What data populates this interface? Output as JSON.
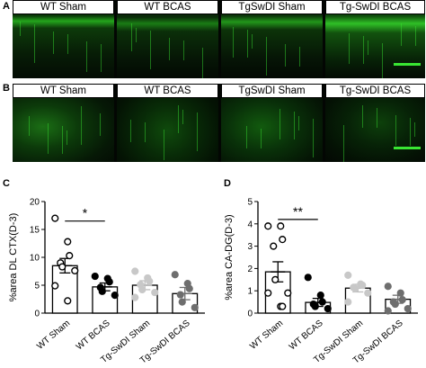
{
  "panels": {
    "a": {
      "letter": "A",
      "labels": [
        "WT Sham",
        "WT BCAS",
        "TgSwDI Sham",
        "Tg-SwDI BCAS"
      ]
    },
    "b": {
      "letter": "B",
      "labels": [
        "WT Sham",
        "WT BCAS",
        "TgSwDI Sham",
        "Tg-SwDI BCAS"
      ]
    },
    "c": {
      "letter": "C"
    },
    "d": {
      "letter": "D"
    }
  },
  "colors": {
    "fluorescence": "#39e633",
    "wt_sham": "#ffffff",
    "wt_bcas": "#000000",
    "tg_sham": "#c8c8c8",
    "tg_bcas": "#6e6e6e"
  },
  "chart_data": [
    {
      "type": "bar",
      "panel": "C",
      "ylabel": "%area DL CTX(D-3)",
      "ylim": [
        0,
        20
      ],
      "yticks": [
        "0",
        "5",
        "10",
        "15",
        "20"
      ],
      "categories": [
        "WT Sham",
        "WT BCAS",
        "Tg-SwDI Sham",
        "Tg-SwDI BCAS"
      ],
      "values": [
        8.5,
        4.7,
        5.0,
        3.5
      ],
      "sem": [
        1.3,
        0.7,
        0.8,
        1.1
      ],
      "points": [
        [
          17.0,
          12.8,
          10.3,
          9.0,
          8.3,
          7.6,
          4.9,
          2.2
        ],
        [
          6.6,
          6.2,
          5.6,
          4.6,
          3.9,
          3.2
        ],
        [
          7.5,
          6.3,
          5.7,
          5.1,
          4.2,
          3.7,
          2.8
        ],
        [
          6.9,
          5.3,
          4.4,
          3.3,
          2.0,
          1.0
        ]
      ],
      "significance": {
        "from": 0,
        "to": 1,
        "label": "*",
        "y": 16.5
      }
    },
    {
      "type": "bar",
      "panel": "D",
      "ylabel": "%area CA-DG(D-3)",
      "ylim": [
        0,
        5
      ],
      "yticks": [
        "0",
        "1",
        "2",
        "3",
        "4",
        "5"
      ],
      "categories": [
        "WT Sham",
        "WT BCAS",
        "Tg-SwDI Sham",
        "Tg-SwDI BCAS"
      ],
      "values": [
        1.85,
        0.48,
        1.12,
        0.62
      ],
      "sem": [
        0.45,
        0.18,
        0.17,
        0.18
      ],
      "points": [
        [
          3.9,
          3.9,
          3.3,
          3.0,
          1.5,
          0.9,
          0.9,
          0.3,
          0.3
        ],
        [
          1.6,
          0.8,
          0.5,
          0.4,
          0.3,
          0.2
        ],
        [
          1.7,
          1.3,
          1.25,
          1.15,
          1.1,
          0.9,
          0.5
        ],
        [
          1.2,
          0.9,
          0.6,
          0.5,
          0.4,
          0.2,
          0.1
        ]
      ],
      "significance": {
        "from": 0,
        "to": 1,
        "label": "**",
        "y": 4.2
      }
    }
  ]
}
